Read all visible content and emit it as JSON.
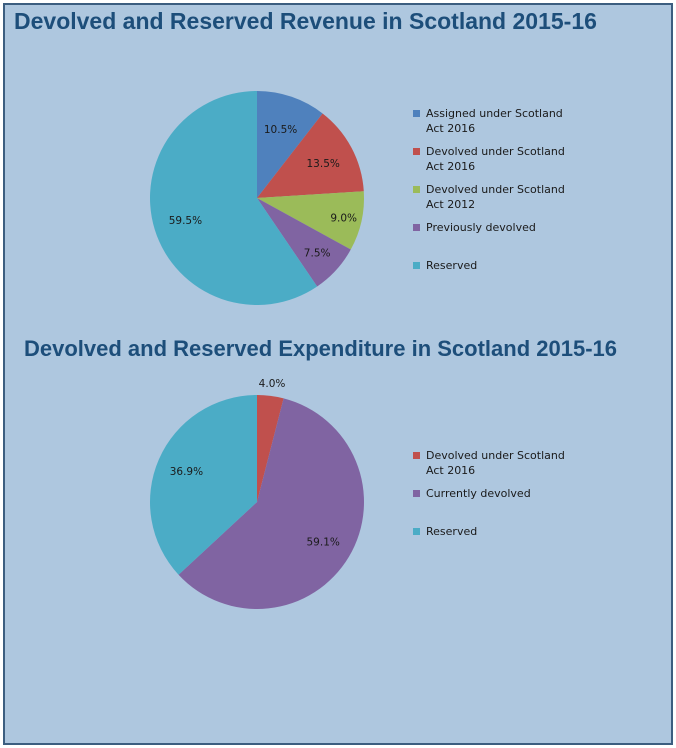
{
  "chart_data": [
    {
      "type": "pie",
      "title": "Devolved and Reserved Revenue in Scotland 2015-16",
      "start": "12 o'clock, clockwise",
      "slices": [
        {
          "label": "Assigned under Scotland Act 2016",
          "value": 10.5,
          "display": "10.5%",
          "color": "#4f81bd"
        },
        {
          "label": "Devolved under Scotland Act 2016",
          "value": 13.5,
          "display": "13.5%",
          "color": "#c0504d"
        },
        {
          "label": "Devolved under Scotland Act 2012",
          "value": 9.0,
          "display": "9.0%",
          "color": "#9bbb59"
        },
        {
          "label": "Previously devolved",
          "value": 7.5,
          "display": "7.5%",
          "color": "#8064a2"
        },
        {
          "label": "Reserved",
          "value": 59.5,
          "display": "59.5%",
          "color": "#4bacc6"
        }
      ],
      "legend_position": "right"
    },
    {
      "type": "pie",
      "title": "Devolved and Reserved Expenditure in Scotland 2015-16",
      "start": "12 o'clock, clockwise",
      "slices": [
        {
          "label": "Devolved under Scotland Act 2016",
          "value": 4.0,
          "display": "4.0%",
          "color": "#c0504d"
        },
        {
          "label": "Currently devolved",
          "value": 59.1,
          "display": "59.1%",
          "color": "#8064a2"
        },
        {
          "label": "Reserved",
          "value": 36.9,
          "display": "36.9%",
          "color": "#4bacc6"
        }
      ],
      "legend_position": "right"
    }
  ]
}
